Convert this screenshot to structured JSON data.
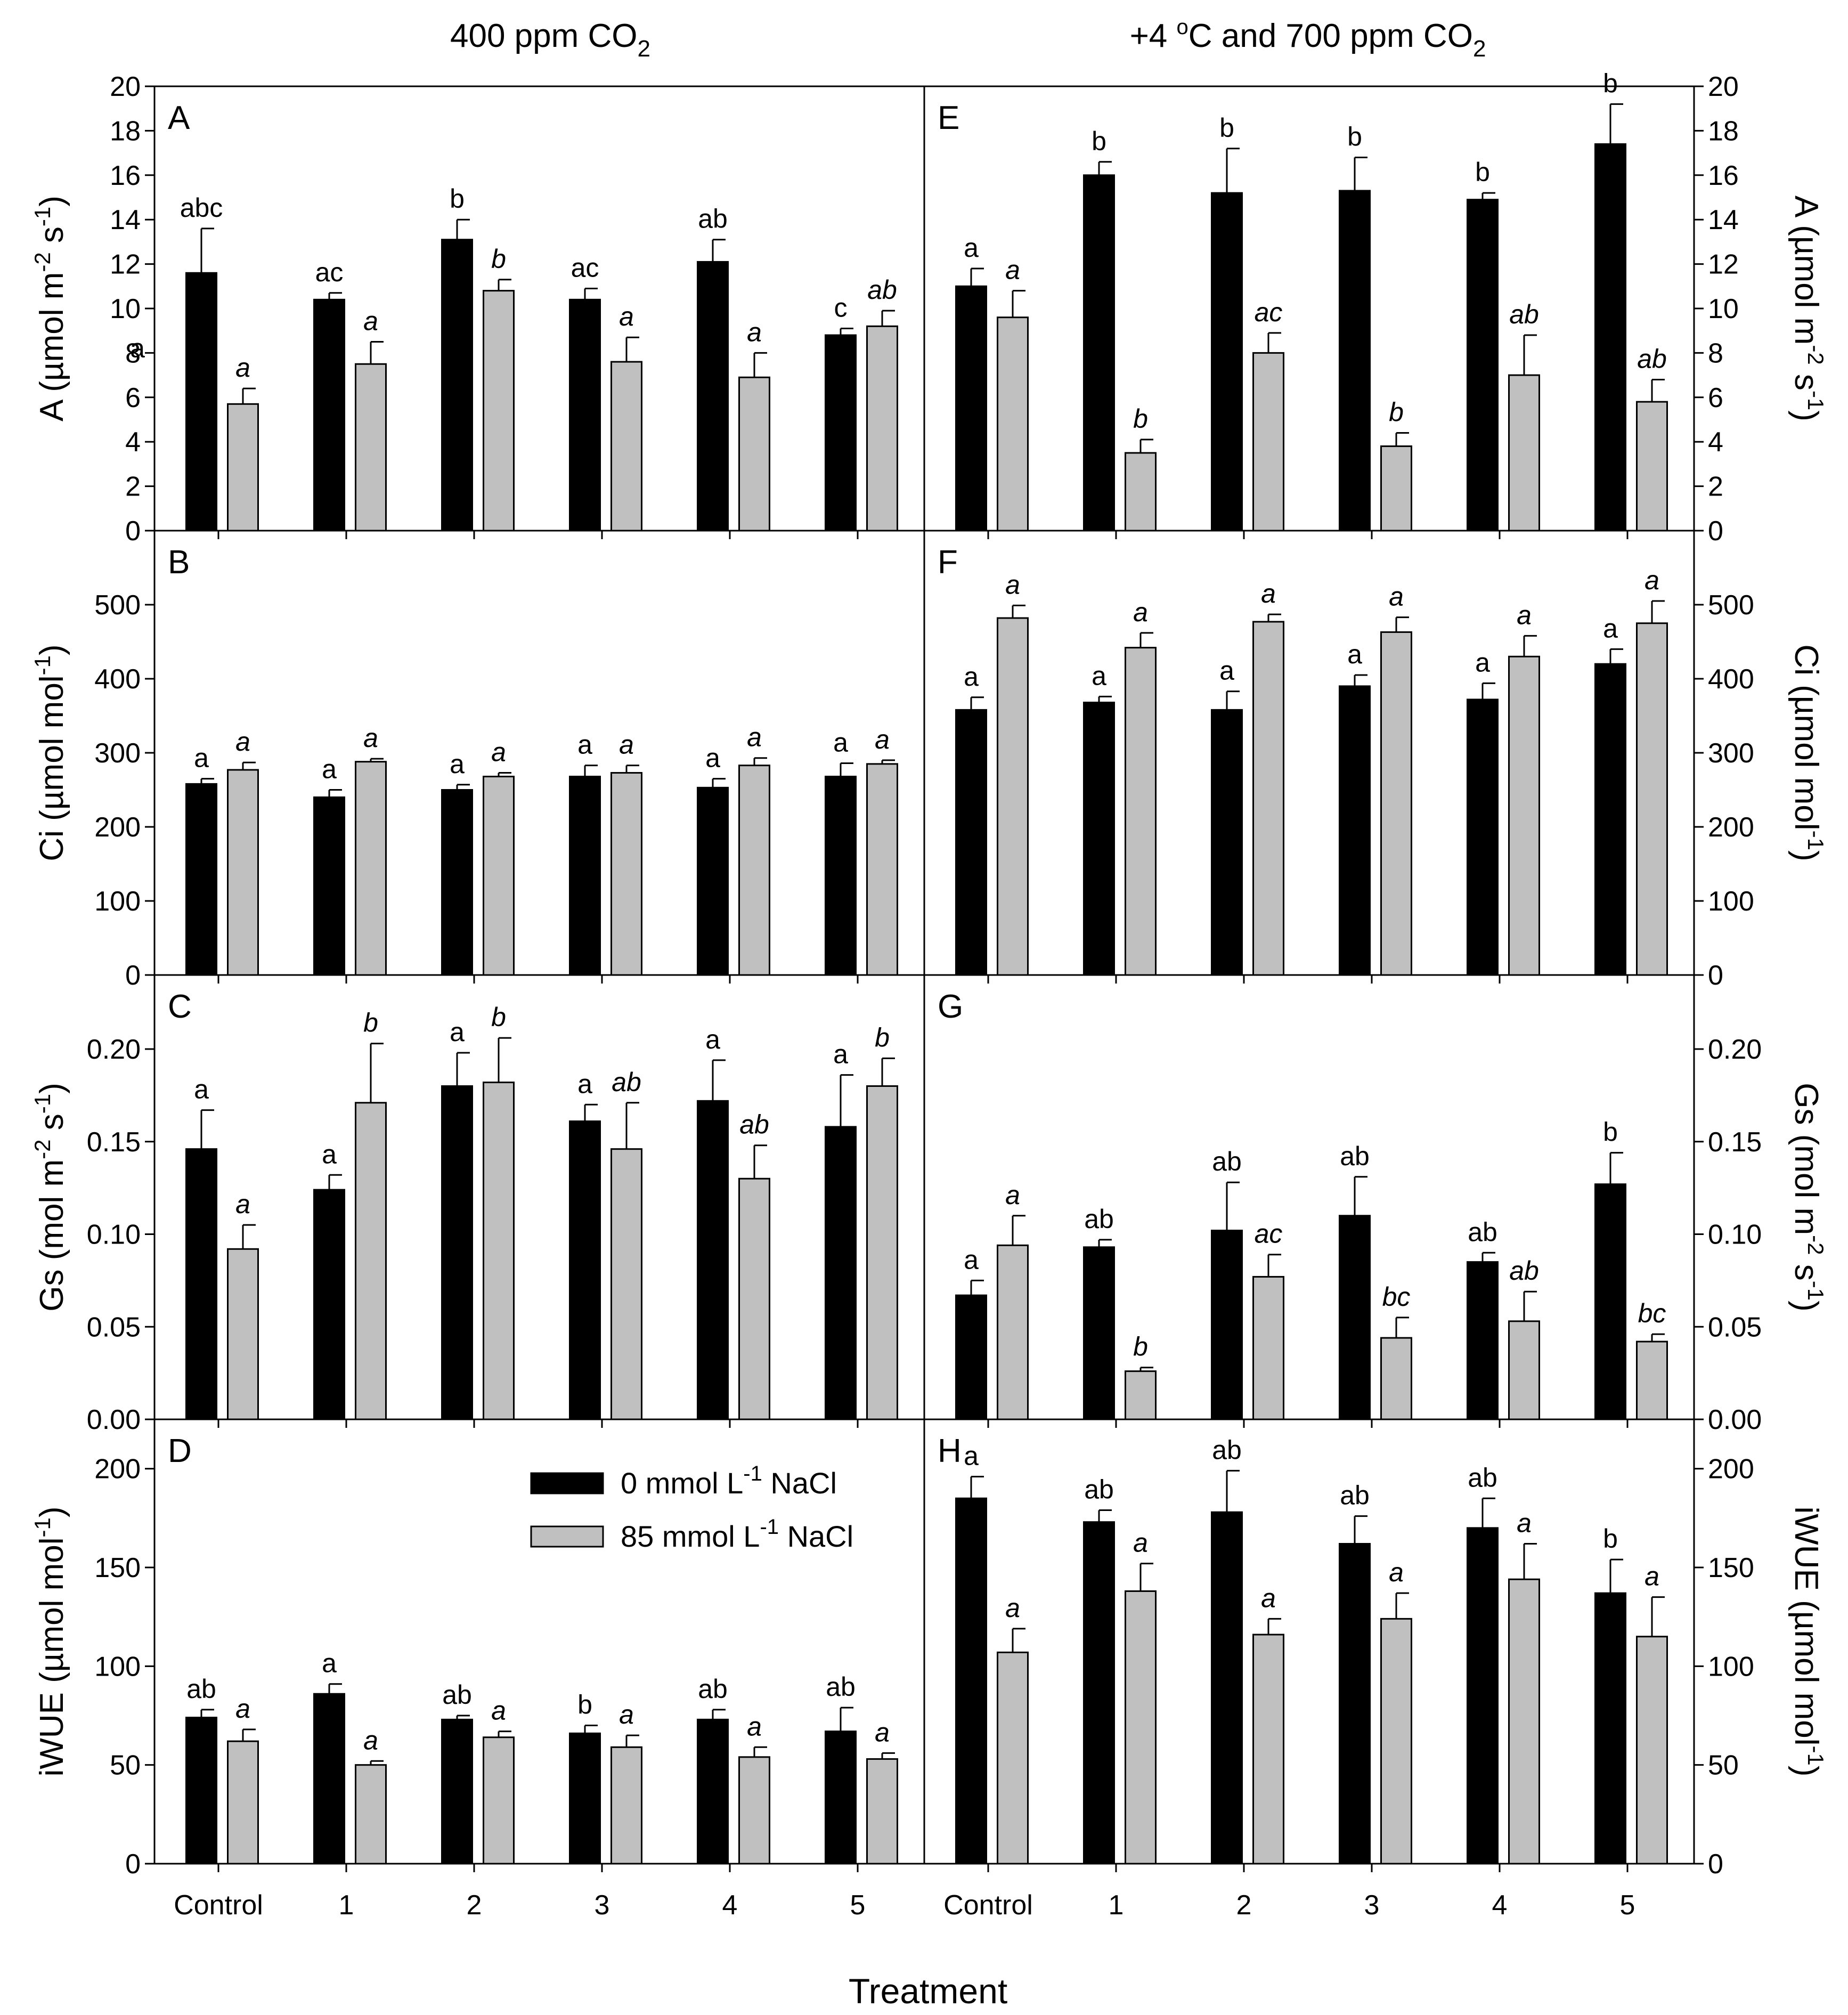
{
  "figure": {
    "left_title": "400 ppm CO",
    "left_title_sub": "2",
    "right_title_pre": "+4 ",
    "right_title_deg": "o",
    "right_title_mid": "C and 700 ppm CO",
    "right_title_sub": "2",
    "xlabel": "Treatment",
    "categories": [
      "Control",
      "1",
      "2",
      "3",
      "4",
      "5"
    ],
    "legend": [
      {
        "pre": "0 mmol L",
        "sup": "-1",
        "post": " NaCl",
        "color": "#000000"
      },
      {
        "pre": "85 mmol L",
        "sup": "-1",
        "post": " NaCl",
        "color": "#c0c0c0"
      }
    ],
    "colors": {
      "series0": "#000000",
      "series1": "#c0c0c0",
      "axis": "#000000"
    }
  },
  "chart_data": [
    {
      "type": "bar",
      "letter": "A",
      "column": "left",
      "ylim": [
        0,
        20
      ],
      "yticks": [
        "0",
        "2",
        "4",
        "6",
        "8",
        "10",
        "12",
        "14",
        "16",
        "18",
        "20"
      ],
      "ylabel": [
        {
          "t": "A (µmol m"
        },
        {
          "t": "-2",
          "sup": true
        },
        {
          "t": " s"
        },
        {
          "t": "-1",
          "sup": true
        },
        {
          "t": ")"
        }
      ],
      "stray_label": "a",
      "series": [
        {
          "name": "0 mmol L-1 NaCl",
          "values": [
            11.6,
            10.4,
            13.1,
            10.4,
            12.1,
            8.8
          ],
          "errors": [
            2.0,
            0.3,
            0.9,
            0.5,
            1.0,
            0.3
          ],
          "labels": [
            "abc",
            "ac",
            "b",
            "ac",
            "ab",
            "c"
          ],
          "italic": false
        },
        {
          "name": "85 mmol L-1 NaCl",
          "values": [
            5.7,
            7.5,
            10.8,
            7.6,
            6.9,
            9.2
          ],
          "errors": [
            0.7,
            1.0,
            0.5,
            1.1,
            1.1,
            0.7
          ],
          "labels": [
            "a",
            "a",
            "b",
            "a",
            "a",
            "ab"
          ],
          "italic": true
        }
      ]
    },
    {
      "type": "bar",
      "letter": "B",
      "column": "left",
      "ylim": [
        0,
        600
      ],
      "yticks": [
        "0",
        "100",
        "200",
        "300",
        "400",
        "500"
      ],
      "ylabel": [
        {
          "t": "Ci (µmol mol"
        },
        {
          "t": "-1",
          "sup": true
        },
        {
          "t": ")"
        }
      ],
      "series": [
        {
          "name": "0 mmol L-1 NaCl",
          "values": [
            258,
            240,
            250,
            268,
            253,
            268
          ],
          "errors": [
            7,
            10,
            7,
            15,
            12,
            18
          ],
          "labels": [
            "a",
            "a",
            "a",
            "a",
            "a",
            "a"
          ],
          "italic": false
        },
        {
          "name": "85 mmol L-1 NaCl",
          "values": [
            277,
            288,
            268,
            273,
            283,
            285
          ],
          "errors": [
            10,
            4,
            5,
            10,
            10,
            5
          ],
          "labels": [
            "a",
            "a",
            "a",
            "a",
            "a",
            "a"
          ],
          "italic": true
        }
      ]
    },
    {
      "type": "bar",
      "letter": "C",
      "column": "left",
      "ylim": [
        0,
        0.24
      ],
      "yticks": [
        "0.00",
        "0.05",
        "0.10",
        "0.15",
        "0.20"
      ],
      "ylabel": [
        {
          "t": "Gs (mol m"
        },
        {
          "t": "-2",
          "sup": true
        },
        {
          "t": " s"
        },
        {
          "t": "-1",
          "sup": true
        },
        {
          "t": ")"
        }
      ],
      "series": [
        {
          "name": "0 mmol L-1 NaCl",
          "values": [
            0.146,
            0.124,
            0.18,
            0.161,
            0.172,
            0.158
          ],
          "errors": [
            0.021,
            0.008,
            0.018,
            0.009,
            0.022,
            0.028
          ],
          "labels": [
            "a",
            "a",
            "a",
            "a",
            "a",
            "a"
          ],
          "italic": false
        },
        {
          "name": "85 mmol L-1 NaCl",
          "values": [
            0.092,
            0.171,
            0.182,
            0.146,
            0.13,
            0.18
          ],
          "errors": [
            0.013,
            0.032,
            0.024,
            0.025,
            0.018,
            0.015
          ],
          "labels": [
            "a",
            "b",
            "b",
            "ab",
            "ab",
            "b"
          ],
          "italic": true
        }
      ]
    },
    {
      "type": "bar",
      "letter": "D",
      "column": "left",
      "ylim": [
        0,
        225
      ],
      "yticks": [
        "0",
        "50",
        "100",
        "150",
        "200"
      ],
      "ylabel": [
        {
          "t": "iWUE (µmol mol"
        },
        {
          "t": "-1",
          "sup": true
        },
        {
          "t": ")"
        }
      ],
      "show_legend": true,
      "series": [
        {
          "name": "0 mmol L-1 NaCl",
          "values": [
            74,
            86,
            73,
            66,
            73,
            67
          ],
          "errors": [
            4,
            5,
            2,
            4,
            5,
            12
          ],
          "labels": [
            "ab",
            "a",
            "ab",
            "b",
            "ab",
            "ab"
          ],
          "italic": false
        },
        {
          "name": "85 mmol L-1 NaCl",
          "values": [
            62,
            50,
            64,
            59,
            54,
            53
          ],
          "errors": [
            6,
            2,
            3,
            6,
            5,
            3
          ],
          "labels": [
            "a",
            "a",
            "a",
            "a",
            "a",
            "a"
          ],
          "italic": true
        }
      ]
    },
    {
      "type": "bar",
      "letter": "E",
      "column": "right",
      "ylim": [
        0,
        20
      ],
      "yticks": [
        "0",
        "2",
        "4",
        "6",
        "8",
        "10",
        "12",
        "14",
        "16",
        "18",
        "20"
      ],
      "ylabel": [
        {
          "t": "A (µmol m"
        },
        {
          "t": "-2",
          "sup": true
        },
        {
          "t": " s"
        },
        {
          "t": "-1",
          "sup": true
        },
        {
          "t": ")"
        }
      ],
      "series": [
        {
          "name": "0 mmol L-1 NaCl",
          "values": [
            11.0,
            16.0,
            15.2,
            15.3,
            14.9,
            17.4
          ],
          "errors": [
            0.8,
            0.6,
            2.0,
            1.5,
            0.3,
            1.8
          ],
          "labels": [
            "a",
            "b",
            "b",
            "b",
            "b",
            "b"
          ],
          "italic": false
        },
        {
          "name": "85 mmol L-1 NaCl",
          "values": [
            9.6,
            3.5,
            8.0,
            3.8,
            7.0,
            5.8
          ],
          "errors": [
            1.2,
            0.6,
            0.9,
            0.6,
            1.8,
            1.0
          ],
          "labels": [
            "a",
            "b",
            "ac",
            "b",
            "ab",
            "ab"
          ],
          "italic": true
        }
      ]
    },
    {
      "type": "bar",
      "letter": "F",
      "column": "right",
      "ylim": [
        0,
        600
      ],
      "yticks": [
        "0",
        "100",
        "200",
        "300",
        "400",
        "500"
      ],
      "ylabel": [
        {
          "t": "Ci (µmol mol"
        },
        {
          "t": "-1",
          "sup": true
        },
        {
          "t": ")"
        }
      ],
      "series": [
        {
          "name": "0 mmol L-1 NaCl",
          "values": [
            358,
            368,
            358,
            390,
            372,
            420
          ],
          "errors": [
            17,
            8,
            25,
            15,
            22,
            20
          ],
          "labels": [
            "a",
            "a",
            "a",
            "a",
            "a",
            "a"
          ],
          "italic": false
        },
        {
          "name": "85 mmol L-1 NaCl",
          "values": [
            482,
            442,
            477,
            463,
            430,
            475
          ],
          "errors": [
            17,
            20,
            10,
            20,
            28,
            30
          ],
          "labels": [
            "a",
            "a",
            "a",
            "a",
            "a",
            "a"
          ],
          "italic": true
        }
      ]
    },
    {
      "type": "bar",
      "letter": "G",
      "column": "right",
      "ylim": [
        0,
        0.24
      ],
      "yticks": [
        "0.00",
        "0.05",
        "0.10",
        "0.15",
        "0.20"
      ],
      "ylabel": [
        {
          "t": "Gs (mol m"
        },
        {
          "t": "-2",
          "sup": true
        },
        {
          "t": " s"
        },
        {
          "t": "-1",
          "sup": true
        },
        {
          "t": ")"
        }
      ],
      "series": [
        {
          "name": "0 mmol L-1 NaCl",
          "values": [
            0.067,
            0.093,
            0.102,
            0.11,
            0.085,
            0.127
          ],
          "errors": [
            0.008,
            0.004,
            0.026,
            0.021,
            0.005,
            0.017
          ],
          "labels": [
            "a",
            "ab",
            "ab",
            "ab",
            "ab",
            "b"
          ],
          "italic": false
        },
        {
          "name": "85 mmol L-1 NaCl",
          "values": [
            0.094,
            0.026,
            0.077,
            0.044,
            0.053,
            0.042
          ],
          "errors": [
            0.016,
            0.002,
            0.012,
            0.011,
            0.016,
            0.004
          ],
          "labels": [
            "a",
            "b",
            "ac",
            "bc",
            "ab",
            "bc"
          ],
          "italic": true
        }
      ]
    },
    {
      "type": "bar",
      "letter": "H",
      "column": "right",
      "ylim": [
        0,
        225
      ],
      "yticks": [
        "0",
        "50",
        "100",
        "150",
        "200"
      ],
      "ylabel": [
        {
          "t": "iWUE (µmol mol"
        },
        {
          "t": "-1",
          "sup": true
        },
        {
          "t": ")"
        }
      ],
      "series": [
        {
          "name": "0 mmol L-1 NaCl",
          "values": [
            185,
            173,
            178,
            162,
            170,
            137
          ],
          "errors": [
            11,
            6,
            21,
            14,
            15,
            17
          ],
          "labels": [
            "a",
            "ab",
            "ab",
            "ab",
            "ab",
            "b"
          ],
          "italic": false
        },
        {
          "name": "85 mmol L-1 NaCl",
          "values": [
            107,
            138,
            116,
            124,
            144,
            115
          ],
          "errors": [
            12,
            14,
            8,
            13,
            18,
            20
          ],
          "labels": [
            "a",
            "a",
            "a",
            "a",
            "a",
            "a"
          ],
          "italic": true
        }
      ]
    }
  ]
}
